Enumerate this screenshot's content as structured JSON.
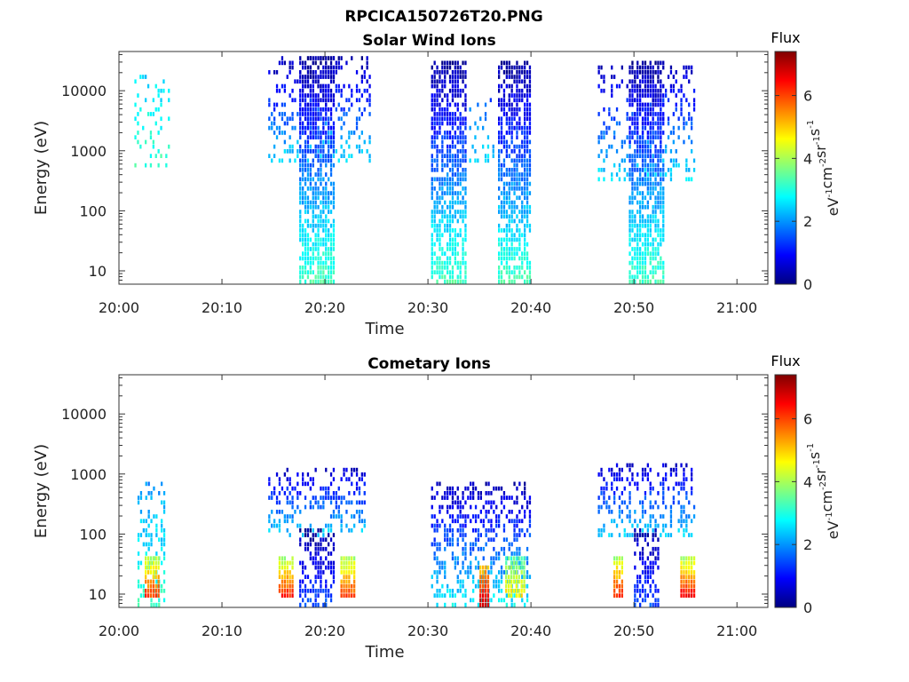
{
  "figure_title": "RPCICA150726T20.PNG",
  "colorbar": {
    "label": "Flux",
    "unit_parts": [
      "eV",
      "-1",
      "cm",
      "-2",
      "sr",
      "-1",
      "s",
      "-1"
    ],
    "ticks": [
      0,
      2,
      4,
      6
    ],
    "range": [
      0,
      7.4
    ],
    "colormap": "jet"
  },
  "chart_data": [
    {
      "type": "heatmap",
      "title": "Solar Wind Ions",
      "xlabel": "Time",
      "ylabel": "Energy (eV)",
      "xticks": [
        "20:00",
        "20:10",
        "20:20",
        "20:30",
        "20:40",
        "20:50",
        "21:00"
      ],
      "xlim": [
        "20:00",
        "21:03"
      ],
      "yscale": "log",
      "yticks": [
        10,
        100,
        1000,
        10000
      ],
      "ylim": [
        6,
        45000
      ],
      "energy_bins": 50,
      "bursts": [
        {
          "start": "20:01.5",
          "end": "20:04.8",
          "energy": [
            500,
            18000
          ],
          "flux_range": [
            2.5,
            3.2
          ],
          "density": 0.18
        },
        {
          "start": "20:14.5",
          "end": "20:24.5",
          "energy": [
            600,
            35000
          ],
          "flux_range": [
            0.3,
            2.6
          ],
          "density": 0.3
        },
        {
          "start": "20:17.5",
          "end": "20:20.8",
          "energy": [
            6,
            35000
          ],
          "flux_range": [
            0.2,
            3.3
          ],
          "density": 0.7
        },
        {
          "start": "20:30.3",
          "end": "20:33.8",
          "energy": [
            6,
            30000
          ],
          "flux_range": [
            0.2,
            3.3
          ],
          "density": 0.7
        },
        {
          "start": "20:34",
          "end": "20:36.5",
          "energy": [
            600,
            8000
          ],
          "flux_range": [
            1.5,
            2.6
          ],
          "density": 0.2
        },
        {
          "start": "20:36.8",
          "end": "20:40",
          "energy": [
            6,
            30000
          ],
          "flux_range": [
            0.2,
            3.3
          ],
          "density": 0.7
        },
        {
          "start": "20:46.5",
          "end": "20:56",
          "energy": [
            300,
            25000
          ],
          "flux_range": [
            0.5,
            2.6
          ],
          "density": 0.25
        },
        {
          "start": "20:49.5",
          "end": "20:52.8",
          "energy": [
            6,
            30000
          ],
          "flux_range": [
            0.2,
            3.3
          ],
          "density": 0.7
        }
      ]
    },
    {
      "type": "heatmap",
      "title": "Cometary Ions",
      "xlabel": "Time",
      "ylabel": "Energy (eV)",
      "xticks": [
        "20:00",
        "20:10",
        "20:20",
        "20:30",
        "20:40",
        "20:50",
        "21:00"
      ],
      "xlim": [
        "20:00",
        "21:03"
      ],
      "yscale": "log",
      "yticks": [
        10,
        100,
        1000,
        10000
      ],
      "ylim": [
        6,
        45000
      ],
      "energy_bins": 50,
      "bursts": [
        {
          "start": "20:01.8",
          "end": "20:04.5",
          "energy": [
            6,
            700
          ],
          "flux_range": [
            2.0,
            3.2
          ],
          "density": 0.35
        },
        {
          "start": "20:02.5",
          "end": "20:03.8",
          "energy": [
            8,
            40
          ],
          "flux_range": [
            4.0,
            6.3
          ],
          "density": 0.9
        },
        {
          "start": "20:14.5",
          "end": "20:24",
          "energy": [
            80,
            1200
          ],
          "flux_range": [
            0.5,
            2.6
          ],
          "density": 0.35
        },
        {
          "start": "20:15.5",
          "end": "20:17",
          "energy": [
            8,
            40
          ],
          "flux_range": [
            4.0,
            6.5
          ],
          "density": 0.9
        },
        {
          "start": "20:21.5",
          "end": "20:23",
          "energy": [
            8,
            40
          ],
          "flux_range": [
            4.0,
            6.3
          ],
          "density": 0.9
        },
        {
          "start": "20:17.5",
          "end": "20:21",
          "energy": [
            6,
            120
          ],
          "flux_range": [
            0.2,
            1.5
          ],
          "density": 0.5
        },
        {
          "start": "20:30.3",
          "end": "20:40",
          "energy": [
            6,
            800
          ],
          "flux_range": [
            0.3,
            2.8
          ],
          "density": 0.4
        },
        {
          "start": "20:35",
          "end": "20:36",
          "energy": [
            6,
            30
          ],
          "flux_range": [
            5.0,
            7.0
          ],
          "density": 0.95
        },
        {
          "start": "20:37.5",
          "end": "20:39.5",
          "energy": [
            8,
            45
          ],
          "flux_range": [
            3.2,
            5.0
          ],
          "density": 0.8
        },
        {
          "start": "20:46.5",
          "end": "20:56",
          "energy": [
            80,
            1500
          ],
          "flux_range": [
            0.5,
            2.6
          ],
          "density": 0.35
        },
        {
          "start": "20:48",
          "end": "20:49",
          "energy": [
            8,
            40
          ],
          "flux_range": [
            4.0,
            6.5
          ],
          "density": 0.9
        },
        {
          "start": "20:50",
          "end": "20:52.5",
          "energy": [
            6,
            120
          ],
          "flux_range": [
            0.2,
            1.5
          ],
          "density": 0.5
        },
        {
          "start": "20:54.5",
          "end": "20:55.8",
          "energy": [
            8,
            40
          ],
          "flux_range": [
            4.0,
            6.8
          ],
          "density": 0.9
        }
      ]
    }
  ]
}
